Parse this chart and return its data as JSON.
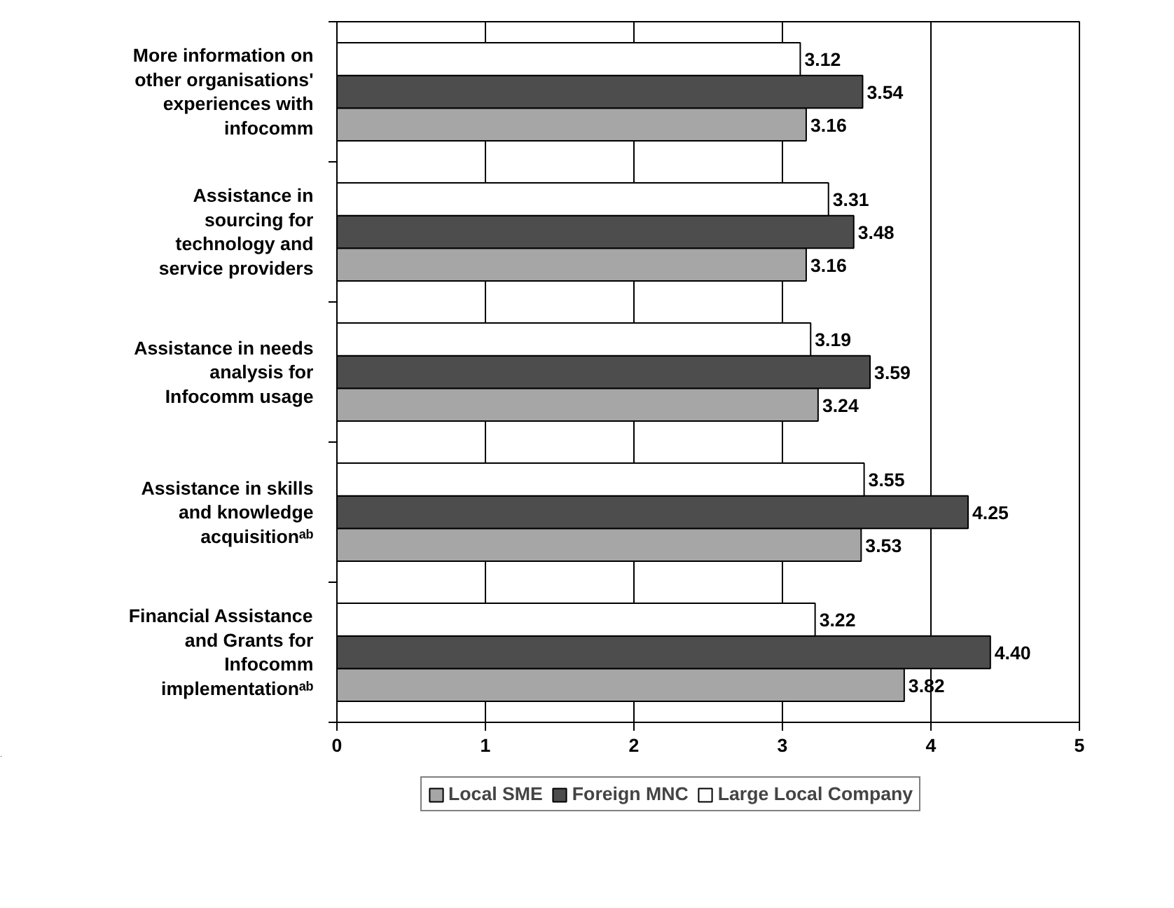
{
  "chart_data": {
    "type": "bar",
    "orientation": "horizontal",
    "categories": [
      "More information on\nother organisations'\nexperiences with\ninfocomm",
      "Assistance in\nsourcing for\ntechnology and\nservice providers",
      "Assistance in needs\nanalysis for\nInfocomm usage",
      "Assistance in skills\nand knowledge\nacquisitionᵃᵇ",
      "Financial Assistance\nand Grants for\nInfocomm\nimplementationᵃᵇ"
    ],
    "series": [
      {
        "name": "Local SME",
        "color": "#a6a6a6",
        "values": [
          3.16,
          3.16,
          3.24,
          3.53,
          3.82
        ],
        "value_labels": [
          "3.16",
          "3.16",
          "3.24",
          "3.53",
          "3.82"
        ]
      },
      {
        "name": "Foreign MNC",
        "color": "#4d4d4d",
        "values": [
          3.54,
          3.48,
          3.59,
          4.25,
          4.4
        ],
        "value_labels": [
          "3.54",
          "3.48",
          "3.59",
          "4.25",
          "4.40"
        ]
      },
      {
        "name": "Large Local Company",
        "color": "#ffffff",
        "values": [
          3.12,
          3.31,
          3.19,
          3.55,
          3.22
        ],
        "value_labels": [
          "3.12",
          "3.31",
          "3.19",
          "3.55",
          "3.22"
        ]
      }
    ],
    "xlim": [
      0,
      5
    ],
    "xticks": [
      0,
      1,
      2,
      3,
      4,
      5
    ],
    "grid": "x",
    "legend": "bottom"
  }
}
